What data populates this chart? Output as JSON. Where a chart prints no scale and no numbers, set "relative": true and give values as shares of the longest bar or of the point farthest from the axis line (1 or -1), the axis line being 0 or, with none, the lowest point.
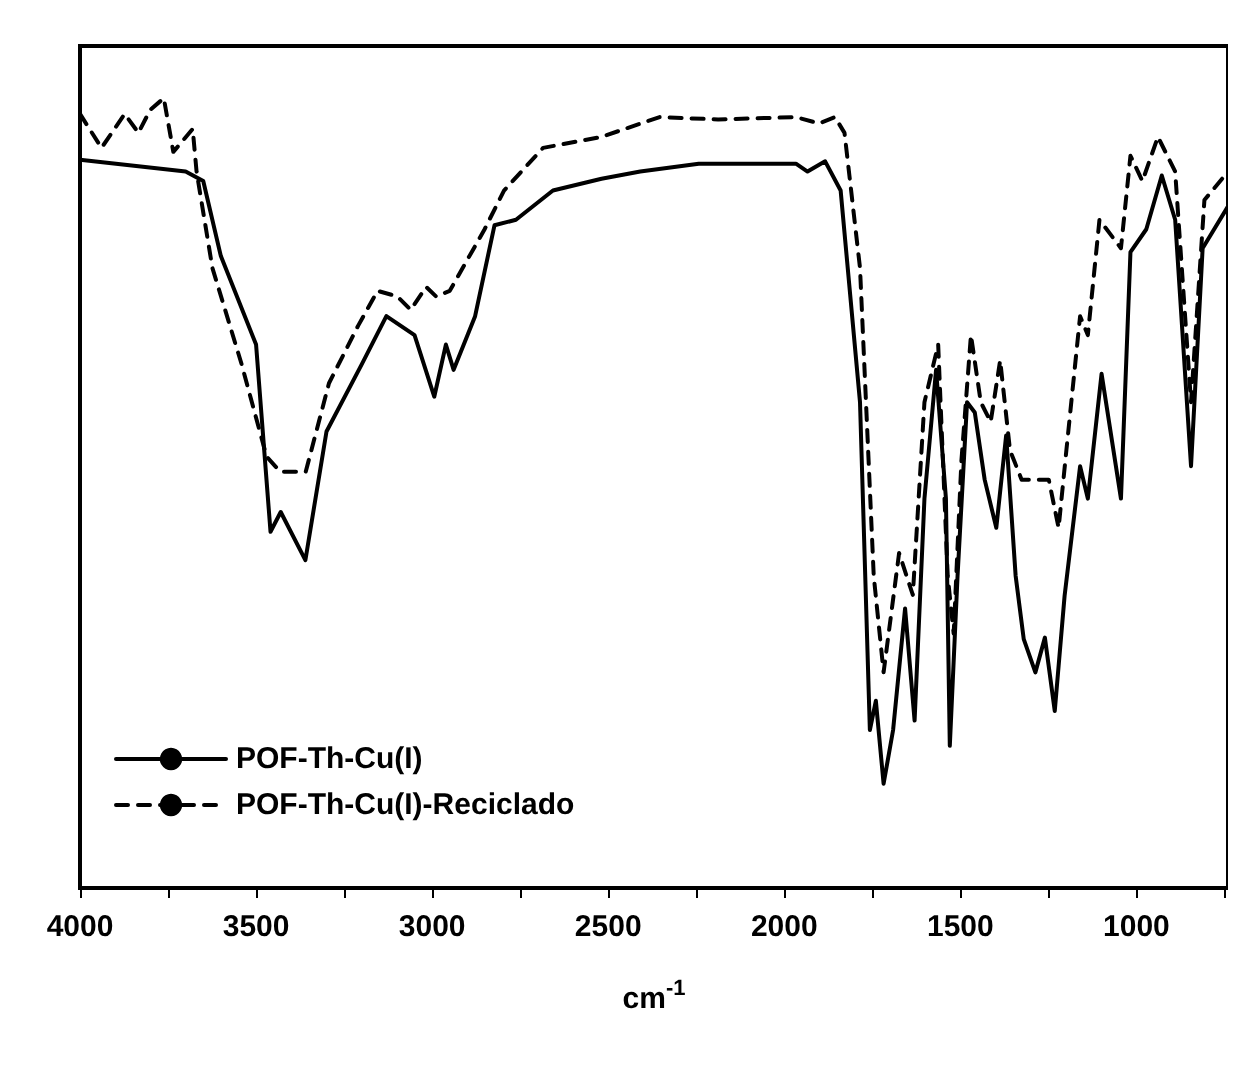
{
  "chart_data": {
    "type": "line",
    "relative": true,
    "xlabel": "cm$^{-1}$",
    "xlim": [
      4000,
      740
    ],
    "xticks": [
      4000,
      {
        "value": 3750,
        "label": null
      },
      3500,
      {
        "value": 3250,
        "label": null
      },
      3000,
      {
        "value": 2750,
        "label": null
      },
      2500,
      {
        "value": 2250,
        "label": null
      },
      2000,
      {
        "value": 1750,
        "label": null
      },
      1500,
      {
        "value": 1250,
        "label": null
      },
      1000,
      {
        "value": 750,
        "label": null
      }
    ],
    "legend": "bottom left",
    "grid": false,
    "marker": "none",
    "series": [
      {
        "name": "POF-Th-Cu(I)",
        "color": "#000000",
        "line_style": "solid",
        "x": [
          4000,
          3700,
          3650,
          3600,
          3500,
          3459,
          3430,
          3360,
          3300,
          3200,
          3130,
          3050,
          2994,
          2961,
          2939,
          2878,
          2823,
          2762,
          2657,
          2519,
          2409,
          2243,
          1967,
          1934,
          1884,
          1840,
          1785,
          1757,
          1740,
          1718,
          1691,
          1657,
          1630,
          1602,
          1569,
          1541,
          1530,
          1508,
          1481,
          1459,
          1431,
          1398,
          1370,
          1343,
          1320,
          1287,
          1260,
          1232,
          1204,
          1160,
          1138,
          1099,
          1044,
          1017,
          972,
          928,
          890,
          845,
          812,
          740
        ],
        "values": [
          0.922,
          0.907,
          0.895,
          0.8,
          0.688,
          0.451,
          0.476,
          0.415,
          0.578,
          0.663,
          0.724,
          0.7,
          0.622,
          0.688,
          0.656,
          0.724,
          0.839,
          0.846,
          0.883,
          0.898,
          0.907,
          0.917,
          0.917,
          0.907,
          0.92,
          0.883,
          0.615,
          0.2,
          0.237,
          0.132,
          0.2,
          0.354,
          0.212,
          0.493,
          0.656,
          0.493,
          0.18,
          0.395,
          0.615,
          0.602,
          0.517,
          0.456,
          0.573,
          0.395,
          0.315,
          0.273,
          0.317,
          0.224,
          0.37,
          0.534,
          0.493,
          0.651,
          0.493,
          0.805,
          0.834,
          0.902,
          0.846,
          0.534,
          0.81,
          0.863
        ]
      },
      {
        "name": "POF-Th-Cu(I)-Reciclado",
        "color": "#000000",
        "line_style": "dashed",
        "x": [
          4000,
          3939,
          3873,
          3834,
          3801,
          3762,
          3735,
          3680,
          3669,
          3624,
          3541,
          3470,
          3431,
          3359,
          3293,
          3210,
          3155,
          3099,
          3061,
          3017,
          2989,
          2950,
          2851,
          2796,
          2685,
          2519,
          2354,
          2188,
          1967,
          1901,
          1856,
          1829,
          1785,
          1746,
          1718,
          1674,
          1635,
          1602,
          1563,
          1536,
          1519,
          1497,
          1470,
          1442,
          1414,
          1387,
          1359,
          1326,
          1249,
          1221,
          1199,
          1160,
          1138,
          1105,
          1044,
          1017,
          983,
          939,
          890,
          845,
          807,
          740
        ],
        "values": [
          0.98,
          0.937,
          0.98,
          0.956,
          0.985,
          1.0,
          0.932,
          0.961,
          0.907,
          0.785,
          0.663,
          0.546,
          0.527,
          0.527,
          0.639,
          0.712,
          0.756,
          0.749,
          0.732,
          0.761,
          0.749,
          0.756,
          0.834,
          0.883,
          0.937,
          0.951,
          0.976,
          0.973,
          0.976,
          0.968,
          0.976,
          0.956,
          0.785,
          0.395,
          0.273,
          0.424,
          0.371,
          0.615,
          0.688,
          0.395,
          0.322,
          0.541,
          0.7,
          0.615,
          0.59,
          0.668,
          0.554,
          0.517,
          0.517,
          0.456,
          0.554,
          0.724,
          0.7,
          0.846,
          0.81,
          0.927,
          0.895,
          0.951,
          0.907,
          0.615,
          0.871,
          0.907
        ]
      }
    ]
  }
}
